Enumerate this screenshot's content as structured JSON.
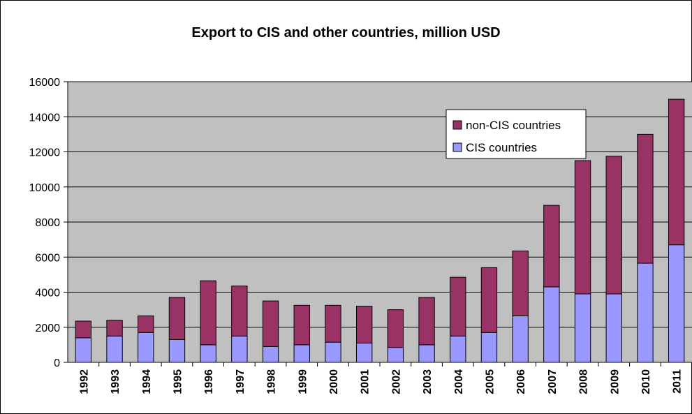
{
  "chart_data": {
    "type": "bar",
    "stacked": true,
    "title": "Export to CIS and other countries, million USD",
    "xlabel": "",
    "ylabel": "",
    "ylim": [
      0,
      16000
    ],
    "yticks": [
      0,
      2000,
      4000,
      6000,
      8000,
      10000,
      12000,
      14000,
      16000
    ],
    "grid": true,
    "legend_position": "top-right",
    "categories": [
      "1992",
      "1993",
      "1994",
      "1995",
      "1996",
      "1997",
      "1998",
      "1999",
      "2000",
      "2001",
      "2002",
      "2003",
      "2004",
      "2005",
      "2006",
      "2007",
      "2008",
      "2009",
      "2010",
      "2011"
    ],
    "series": [
      {
        "name": "CIS countries",
        "color": "#9999ff",
        "values": [
          1400,
          1500,
          1700,
          1300,
          1000,
          1500,
          900,
          1000,
          1150,
          1100,
          850,
          1000,
          1500,
          1700,
          2650,
          4300,
          3900,
          3900,
          5650,
          6700
        ]
      },
      {
        "name": "non-CIS countries",
        "color": "#993366",
        "values": [
          950,
          900,
          950,
          2400,
          3650,
          2850,
          2600,
          2250,
          2100,
          2100,
          2150,
          2700,
          3350,
          3700,
          3700,
          4650,
          7600,
          7850,
          7350,
          8300
        ]
      }
    ],
    "plot_background": "#c0c0c0",
    "legend_order": [
      "non-CIS countries",
      "CIS countries"
    ]
  }
}
